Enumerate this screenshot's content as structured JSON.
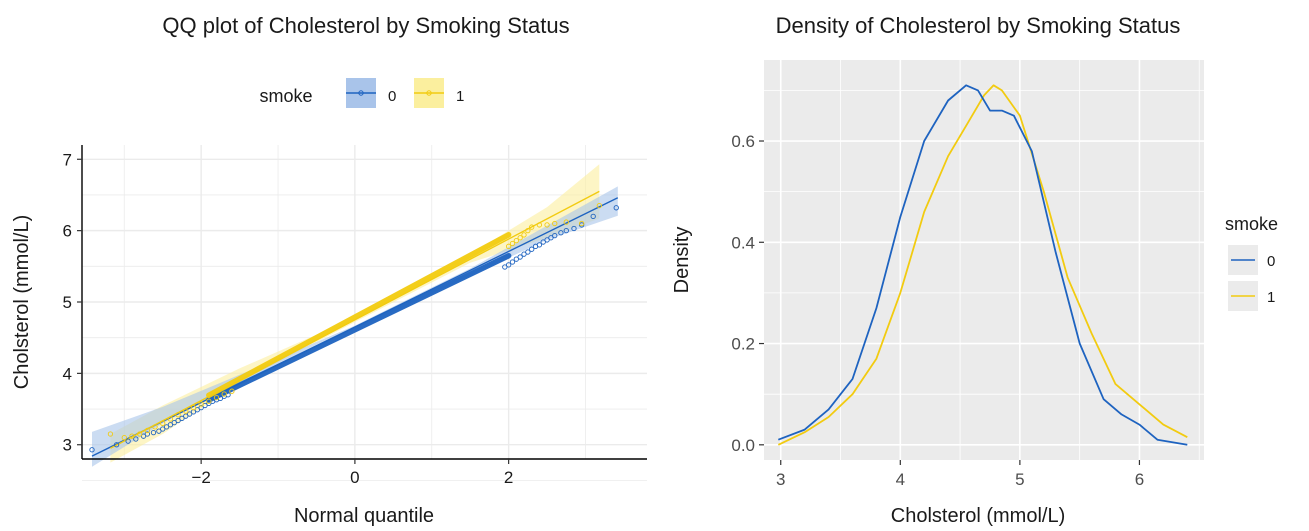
{
  "colors": {
    "smoke_0": "#1e63c0",
    "smoke_1": "#f2cb10",
    "band_0": "#a9c4ea",
    "band_1": "#fbef9e",
    "panel_bg": "#ebebeb",
    "grid": "#ffffff",
    "qq_grid": "#ebebeb",
    "axis_text": "#4d4d4d",
    "text": "#1a1a1a"
  },
  "chart_data": [
    {
      "type": "scatter",
      "title": "QQ plot of Cholesterol by Smoking Status",
      "xlabel": "Normal quantile",
      "ylabel": "Cholsterol (mmol/L)",
      "xlim": [
        -3.55,
        3.8
      ],
      "ylim": [
        2.8,
        7.2
      ],
      "x_ticks": [
        -2,
        0,
        2
      ],
      "y_ticks": [
        3,
        4,
        5,
        6,
        7
      ],
      "grid": true,
      "legend": {
        "title": "smoke",
        "position": "top",
        "entries": [
          "0",
          "1"
        ]
      },
      "series": [
        {
          "name": "0",
          "points_x": [
            -3.42,
            -3.1,
            -2.95,
            -2.85,
            -2.75,
            -2.7,
            -2.62,
            -2.55,
            -2.5,
            -2.45,
            -2.4,
            -2.35,
            -2.3,
            -2.25,
            -2.2,
            -2.15,
            -2.1,
            -2.05,
            -2.0,
            -1.95,
            -1.9,
            -1.85,
            -1.8,
            -1.75,
            -1.7,
            -1.65,
            1.95,
            2.0,
            2.05,
            2.1,
            2.15,
            2.2,
            2.25,
            2.3,
            2.35,
            2.4,
            2.45,
            2.5,
            2.55,
            2.6,
            2.68,
            2.75,
            2.85,
            2.95,
            3.1,
            3.4
          ],
          "points_y": [
            2.93,
            3.0,
            3.05,
            3.08,
            3.12,
            3.15,
            3.17,
            3.19,
            3.22,
            3.25,
            3.28,
            3.31,
            3.34,
            3.37,
            3.4,
            3.43,
            3.46,
            3.49,
            3.52,
            3.55,
            3.58,
            3.61,
            3.63,
            3.65,
            3.68,
            3.7,
            5.49,
            5.52,
            5.56,
            5.6,
            5.63,
            5.67,
            5.7,
            5.74,
            5.78,
            5.8,
            5.84,
            5.87,
            5.9,
            5.93,
            5.97,
            6.0,
            6.03,
            6.08,
            6.2,
            6.32
          ],
          "fit": {
            "x": [
              -3.42,
              3.42
            ],
            "y": [
              2.84,
              6.46
            ]
          },
          "band": {
            "x": [
              -3.42,
              -2.5,
              -1.5,
              0,
              1.5,
              2.5,
              3.42
            ],
            "lower": [
              2.69,
              3.3,
              3.87,
              4.62,
              5.37,
              5.87,
              6.21
            ],
            "upper": [
              3.18,
              3.53,
              3.98,
              4.67,
              5.47,
              6.07,
              6.62
            ]
          }
        },
        {
          "name": "1",
          "points_x": [
            -3.18,
            -3.0,
            -2.9,
            -2.8,
            -2.7,
            -2.6,
            -2.5,
            -2.4,
            -2.3,
            -2.2,
            -2.1,
            -2.0,
            -1.9,
            -1.8,
            -1.7,
            -1.6,
            2.0,
            2.05,
            2.1,
            2.15,
            2.2,
            2.25,
            2.3,
            2.4,
            2.5,
            2.6,
            2.75,
            2.95,
            3.18
          ],
          "points_y": [
            3.15,
            3.1,
            3.12,
            3.15,
            3.2,
            3.25,
            3.3,
            3.36,
            3.42,
            3.47,
            3.52,
            3.57,
            3.61,
            3.66,
            3.71,
            3.75,
            5.78,
            5.82,
            5.86,
            5.9,
            5.94,
            6.0,
            6.05,
            6.08,
            6.08,
            6.1,
            6.12,
            6.1,
            6.35
          ],
          "fit": {
            "x": [
              -3.18,
              3.18
            ],
            "y": [
              2.95,
              6.55
            ]
          },
          "band": {
            "x": [
              -3.18,
              -2.5,
              -1.5,
              0,
              1.5,
              2.5,
              3.18
            ],
            "lower": [
              2.75,
              3.15,
              3.87,
              4.72,
              5.55,
              5.9,
              6.17
            ],
            "upper": [
              3.15,
              3.55,
              4.07,
              4.78,
              5.67,
              6.33,
              6.93
            ]
          }
        }
      ]
    },
    {
      "type": "line",
      "title": "Density of Cholesterol by Smoking Status",
      "xlabel": "Cholsterol (mmol/L)",
      "ylabel": "Density",
      "xlim": [
        2.86,
        6.54
      ],
      "ylim": [
        -0.03,
        0.76
      ],
      "x_ticks": [
        3,
        4,
        5,
        6
      ],
      "y_ticks": [
        0.0,
        0.2,
        0.4,
        0.6
      ],
      "y_tick_labels": [
        "0.0",
        "0.2",
        "0.4",
        "0.6"
      ],
      "grid": true,
      "legend": {
        "title": "smoke",
        "position": "right",
        "entries": [
          "0",
          "1"
        ]
      },
      "series": [
        {
          "name": "0",
          "x": [
            2.98,
            3.2,
            3.4,
            3.6,
            3.8,
            4.0,
            4.2,
            4.4,
            4.55,
            4.65,
            4.75,
            4.85,
            4.95,
            5.1,
            5.3,
            5.5,
            5.7,
            5.85,
            6.0,
            6.15,
            6.4
          ],
          "y": [
            0.01,
            0.03,
            0.07,
            0.13,
            0.27,
            0.45,
            0.6,
            0.68,
            0.71,
            0.7,
            0.66,
            0.66,
            0.65,
            0.58,
            0.38,
            0.2,
            0.09,
            0.06,
            0.04,
            0.01,
            0.0
          ]
        },
        {
          "name": "1",
          "x": [
            2.98,
            3.2,
            3.4,
            3.6,
            3.8,
            4.0,
            4.2,
            4.4,
            4.55,
            4.7,
            4.78,
            4.85,
            5.0,
            5.2,
            5.4,
            5.6,
            5.8,
            6.0,
            6.2,
            6.4
          ],
          "y": [
            0.0,
            0.025,
            0.055,
            0.1,
            0.17,
            0.3,
            0.46,
            0.57,
            0.63,
            0.69,
            0.71,
            0.7,
            0.65,
            0.5,
            0.33,
            0.22,
            0.12,
            0.08,
            0.04,
            0.015
          ]
        }
      ]
    }
  ]
}
